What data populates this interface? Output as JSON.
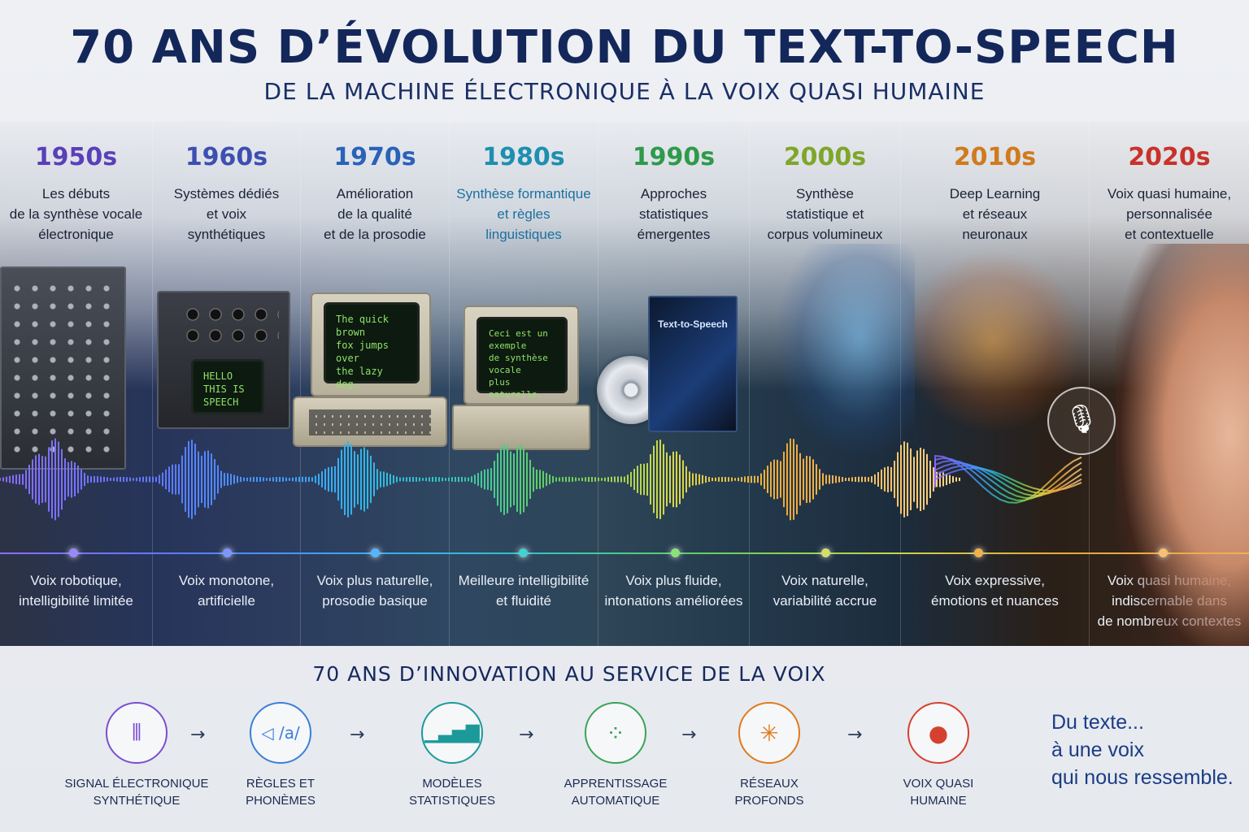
{
  "header": {
    "title": "70 ANS D’ÉVOLUTION DU TEXT-TO-SPEECH",
    "subtitle": "DE LA MACHINE ÉLECTRONIQUE À LA VOIX QUASI HUMAINE"
  },
  "timeline": [
    {
      "decade": "1950s",
      "desc": "Les débuts\nde la synthèse vocale\nélectronique",
      "caption": "Voix robotique,\nintelligibilité limitée",
      "color": "#5b3fb8",
      "dot": "#9a86ff"
    },
    {
      "decade": "1960s",
      "desc": "Systèmes dédiés\net voix\nsynthétiques",
      "caption": "Voix monotone,\nartificielle",
      "color": "#3d4fb0",
      "dot": "#7d95ff"
    },
    {
      "decade": "1970s",
      "desc": "Amélioration\nde la qualité\net de la prosodie",
      "caption": "Voix plus naturelle,\nprosodie basique",
      "color": "#2a62b8",
      "dot": "#56b4ff"
    },
    {
      "decade": "1980s",
      "desc": "Synthèse formantique\net règles\nlinguistiques",
      "caption": "Meilleure intelligibilité\net fluidité",
      "color": "#1e8fb0",
      "dot": "#43d1d1"
    },
    {
      "decade": "1990s",
      "desc": "Approches\nstatistiques\némergentes",
      "caption": "Voix plus fluide,\nintonations améliorées",
      "color": "#2e9a4a",
      "dot": "#8be07a"
    },
    {
      "decade": "2000s",
      "desc": "Synthèse\nstatistique et\ncorpus volumineux",
      "caption": "Voix naturelle,\nvariabilité accrue",
      "color": "#7fa62a",
      "dot": "#d4df6a"
    },
    {
      "decade": "2010s",
      "desc": "Deep Learning\net réseaux\nneuronaux",
      "caption": "Voix expressive,\némotions et nuances",
      "color": "#d07a1e",
      "dot": "#f2b04a"
    },
    {
      "decade": "2020s",
      "desc": "Voix quasi humaine,\npersonnalisée\net contextuelle",
      "caption": "Voix quasi humaine,\nindiscernable dans\nde nombreux contextes",
      "color": "#c8322a",
      "dot": "#f6c070"
    }
  ],
  "screens": {
    "synth": "HELLO\nTHIS IS\nSPEECH",
    "pc1": "The quick brown\nfox jumps over\nthe lazy dog.",
    "pc2": "Ceci est un exemple\nde synthèse vocale\nplus naturelle.",
    "box_title": "Text-to-Speech"
  },
  "bottom": {
    "title": "70 ANS D’INNOVATION AU SERVICE DE LA VOIX",
    "steps": [
      {
        "label": "Signal électronique\nsynthétique",
        "icon": "waveform-icon",
        "glyph": "⦀",
        "color": "#7a4fd0"
      },
      {
        "label": "Règles et\nphonèmes",
        "icon": "speaker-phoneme-icon",
        "glyph": "◁ /a/",
        "color": "#3b7fd8"
      },
      {
        "label": "Modèles\nstatistiques",
        "icon": "bar-chart-icon",
        "glyph": "▁▃▅▇",
        "color": "#1c9a9a"
      },
      {
        "label": "Apprentissage\nautomatique",
        "icon": "brain-icon",
        "glyph": "⁘",
        "color": "#3aa556"
      },
      {
        "label": "Réseaux\nprofonds",
        "icon": "neural-network-icon",
        "glyph": "✳",
        "color": "#e07b1c"
      },
      {
        "label": "Voix quasi\nhumaine",
        "icon": "person-head-icon",
        "glyph": "●",
        "color": "#d6402e"
      }
    ],
    "arrow": "→",
    "tagline": "Du texte...\nà une voix\nqui nous ressemble."
  }
}
